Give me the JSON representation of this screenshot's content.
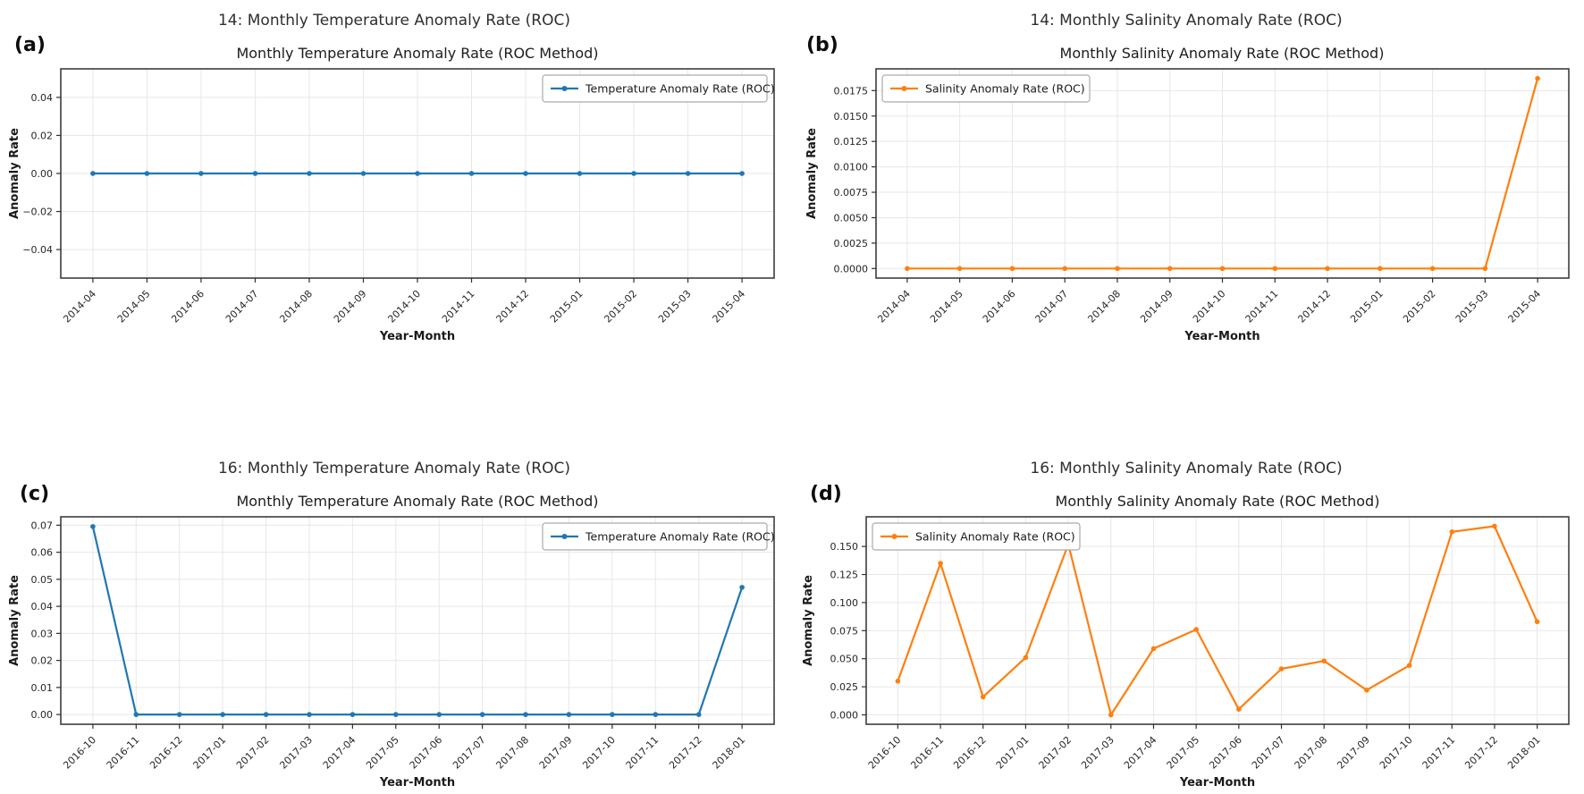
{
  "figure": {
    "background": "#ffffff",
    "grid_color": "#e7e7e7",
    "spine_color": "#3d3d3d",
    "tick_color": "#2f2f2f",
    "text_color": "#1a1a1a"
  },
  "chart_data": [
    {
      "id": "a",
      "panel_label": "(a)",
      "suptitle": "14: Monthly Temperature Anomaly Rate (ROC)",
      "title": "Monthly Temperature Anomaly Rate (ROC Method)",
      "type": "line",
      "series_name": "Temperature Anomaly Rate (ROC)",
      "color": "#1f77b4",
      "legend_position": "top-right",
      "xlabel": "Year-Month",
      "ylabel": "Anomaly Rate",
      "grid": true,
      "categories": [
        "2014-04",
        "2014-05",
        "2014-06",
        "2014-07",
        "2014-08",
        "2014-09",
        "2014-10",
        "2014-11",
        "2014-12",
        "2015-01",
        "2015-02",
        "2015-03",
        "2015-04"
      ],
      "values": [
        0,
        0,
        0,
        0,
        0,
        0,
        0,
        0,
        0,
        0,
        0,
        0,
        0
      ],
      "ylim": [
        -0.055,
        0.055
      ],
      "yticks": [
        -0.04,
        -0.02,
        0,
        0.02,
        0.04
      ],
      "ytick_labels": [
        "−0.04",
        "−0.02",
        "0.00",
        "0.02",
        "0.04"
      ]
    },
    {
      "id": "b",
      "panel_label": "(b)",
      "suptitle": "14: Monthly Salinity Anomaly Rate (ROC)",
      "title": "Monthly Salinity Anomaly Rate (ROC Method)",
      "type": "line",
      "series_name": "Salinity Anomaly Rate (ROC)",
      "color": "#ff7f0e",
      "legend_position": "top-left",
      "xlabel": "Year-Month",
      "ylabel": "Anomaly Rate",
      "grid": true,
      "categories": [
        "2014-04",
        "2014-05",
        "2014-06",
        "2014-07",
        "2014-08",
        "2014-09",
        "2014-10",
        "2014-11",
        "2014-12",
        "2015-01",
        "2015-02",
        "2015-03",
        "2015-04"
      ],
      "values": [
        0,
        0,
        0,
        0,
        0,
        0,
        0,
        0,
        0,
        0,
        0,
        0,
        0.0187
      ],
      "ylim": [
        -0.00094,
        0.01964
      ],
      "yticks": [
        0,
        0.0025,
        0.005,
        0.0075,
        0.01,
        0.0125,
        0.015,
        0.0175
      ],
      "ytick_labels": [
        "0.0000",
        "0.0025",
        "0.0050",
        "0.0075",
        "0.0100",
        "0.0125",
        "0.0150",
        "0.0175"
      ]
    },
    {
      "id": "c",
      "panel_label": "(c)",
      "suptitle": "16: Monthly Temperature Anomaly Rate (ROC)",
      "title": "Monthly Temperature Anomaly Rate (ROC Method)",
      "type": "line",
      "series_name": "Temperature Anomaly Rate (ROC)",
      "color": "#1f77b4",
      "legend_position": "top-right",
      "xlabel": "Year-Month",
      "ylabel": "Anomaly Rate",
      "grid": true,
      "categories": [
        "2016-10",
        "2016-11",
        "2016-12",
        "2017-01",
        "2017-02",
        "2017-03",
        "2017-04",
        "2017-05",
        "2017-06",
        "2017-07",
        "2017-08",
        "2017-09",
        "2017-10",
        "2017-11",
        "2017-12",
        "2018-01"
      ],
      "values": [
        0.0695,
        0,
        0,
        0,
        0,
        0,
        0,
        0,
        0,
        0,
        0,
        0,
        0,
        0,
        0,
        0.047
      ],
      "ylim": [
        -0.0036,
        0.0731
      ],
      "yticks": [
        0,
        0.01,
        0.02,
        0.03,
        0.04,
        0.05,
        0.06,
        0.07
      ],
      "ytick_labels": [
        "0.00",
        "0.01",
        "0.02",
        "0.03",
        "0.04",
        "0.05",
        "0.06",
        "0.07"
      ]
    },
    {
      "id": "d",
      "panel_label": "(d)",
      "suptitle": "16: Monthly Salinity Anomaly Rate (ROC)",
      "title": "Monthly Salinity Anomaly Rate (ROC Method)",
      "type": "line",
      "series_name": "Salinity Anomaly Rate (ROC)",
      "color": "#ff7f0e",
      "legend_position": "top-left",
      "xlabel": "Year-Month",
      "ylabel": "Anomaly Rate",
      "grid": true,
      "categories": [
        "2016-10",
        "2016-11",
        "2016-12",
        "2017-01",
        "2017-02",
        "2017-03",
        "2017-04",
        "2017-05",
        "2017-06",
        "2017-07",
        "2017-08",
        "2017-09",
        "2017-10",
        "2017-11",
        "2017-12",
        "2018-01"
      ],
      "values": [
        0.03,
        0.135,
        0.016,
        0.051,
        0.152,
        0.0,
        0.059,
        0.076,
        0.005,
        0.041,
        0.048,
        0.022,
        0.044,
        0.163,
        0.168,
        0.083
      ],
      "ylim": [
        -0.0084,
        0.1764
      ],
      "yticks": [
        0,
        0.025,
        0.05,
        0.075,
        0.1,
        0.125,
        0.15
      ],
      "ytick_labels": [
        "0.000",
        "0.025",
        "0.050",
        "0.075",
        "0.100",
        "0.125",
        "0.150"
      ]
    }
  ]
}
